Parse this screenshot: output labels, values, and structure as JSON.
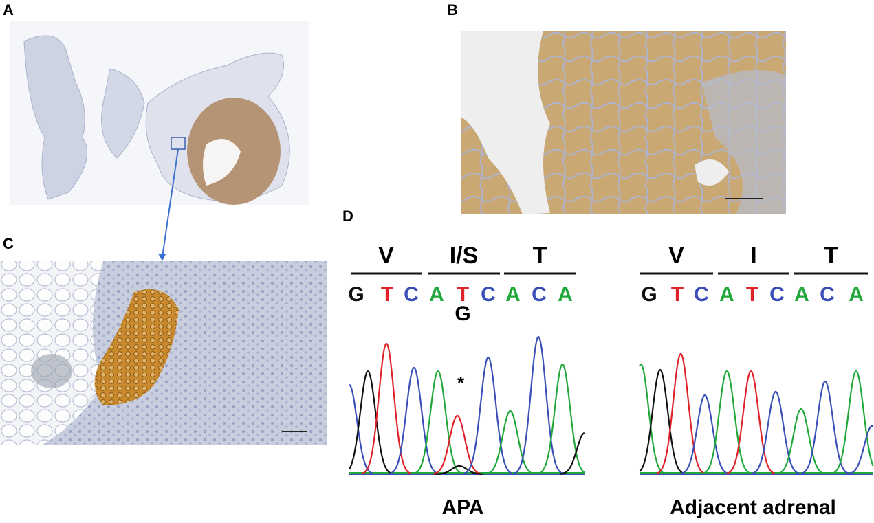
{
  "panels": {
    "a": "A",
    "b": "B",
    "c": "C",
    "d": "D"
  },
  "apa": {
    "codons": [
      "V",
      "I/S",
      "T"
    ],
    "bases": [
      "G",
      "T",
      "C",
      "A",
      "T",
      "C",
      "A",
      "C",
      "A"
    ],
    "variant": "G",
    "marker": "*",
    "caption": "APA"
  },
  "adjacent": {
    "codons": [
      "V",
      "I",
      "T"
    ],
    "bases": [
      "G",
      "T",
      "C",
      "A",
      "T",
      "C",
      "A",
      "C",
      "A"
    ],
    "caption": "Adjacent adrenal"
  }
}
